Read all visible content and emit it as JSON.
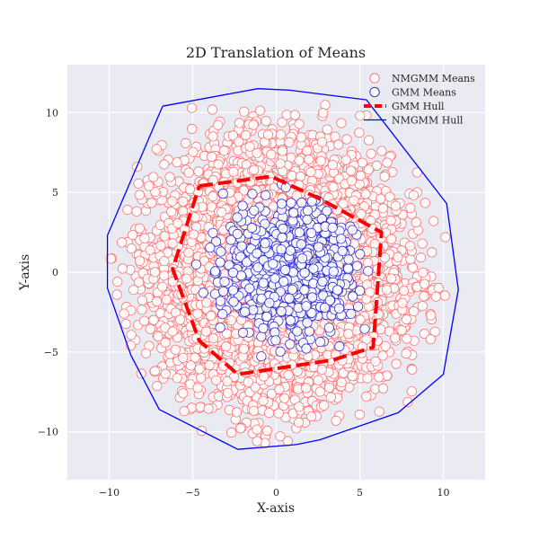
{
  "chart_data": {
    "type": "scatter",
    "title": "2D Translation of Means",
    "xlabel": "X-axis",
    "ylabel": "Y-axis",
    "xlim": [
      -12.5,
      12.5
    ],
    "ylim": [
      -13,
      13
    ],
    "x_ticks": [
      -10,
      -5,
      0,
      5,
      10
    ],
    "y_ticks": [
      -10,
      -5,
      0,
      5,
      10
    ],
    "x_tick_labels": [
      "−10",
      "−5",
      "0",
      "5",
      "10"
    ],
    "y_tick_labels": [
      "−10",
      "−5",
      "0",
      "5",
      "10"
    ],
    "grid": true,
    "background": "#eaeaf2",
    "legend_position": "top-right",
    "legend": [
      "NMGMM Means",
      "GMM Means",
      "GMM Hull",
      "NMGMM Hull"
    ],
    "series": [
      {
        "name": "NMGMM Means",
        "kind": "scatter",
        "marker": "hollow-circle",
        "color": "#ff6b6b",
        "distribution": "normal",
        "count": 6000,
        "center": [
          0,
          0
        ],
        "std": [
          3.4,
          3.6
        ],
        "x_range": [
          -10.1,
          10.9
        ],
        "y_range": [
          -11.1,
          11.4
        ]
      },
      {
        "name": "GMM Means",
        "kind": "scatter",
        "marker": "hollow-circle",
        "color": "#2222cc",
        "distribution": "normal",
        "count": 700,
        "center": [
          0.8,
          0.1
        ],
        "std": [
          1.9,
          2.1
        ],
        "x_range": [
          -6,
          6.2
        ],
        "y_range": [
          -6.5,
          6
        ]
      },
      {
        "name": "GMM Hull",
        "kind": "polygon",
        "style": "dashed",
        "color": "#ff0000",
        "x": [
          -4.6,
          -0.3,
          2.6,
          6.3,
          5.8,
          3.4,
          -2.3,
          -4.6,
          -6.2,
          -4.6
        ],
        "y": [
          5.4,
          6.0,
          4.6,
          2.5,
          -4.7,
          -5.5,
          -6.4,
          -4.3,
          0.2,
          5.4
        ]
      },
      {
        "name": "NMGMM Hull",
        "kind": "polygon",
        "style": "solid",
        "color": "#0000ff",
        "x": [
          -6.8,
          -1.1,
          0.8,
          5.4,
          10.2,
          10.9,
          10.0,
          7.3,
          2.6,
          1.2,
          -2.3,
          -7.0,
          -8.7,
          -10.1,
          -10.1,
          -6.8
        ],
        "y": [
          10.4,
          11.5,
          11.4,
          10.8,
          4.3,
          -1.1,
          -6.4,
          -8.8,
          -10.5,
          -10.8,
          -11.1,
          -8.6,
          -5.2,
          -1.0,
          2.3,
          10.4
        ]
      }
    ]
  }
}
